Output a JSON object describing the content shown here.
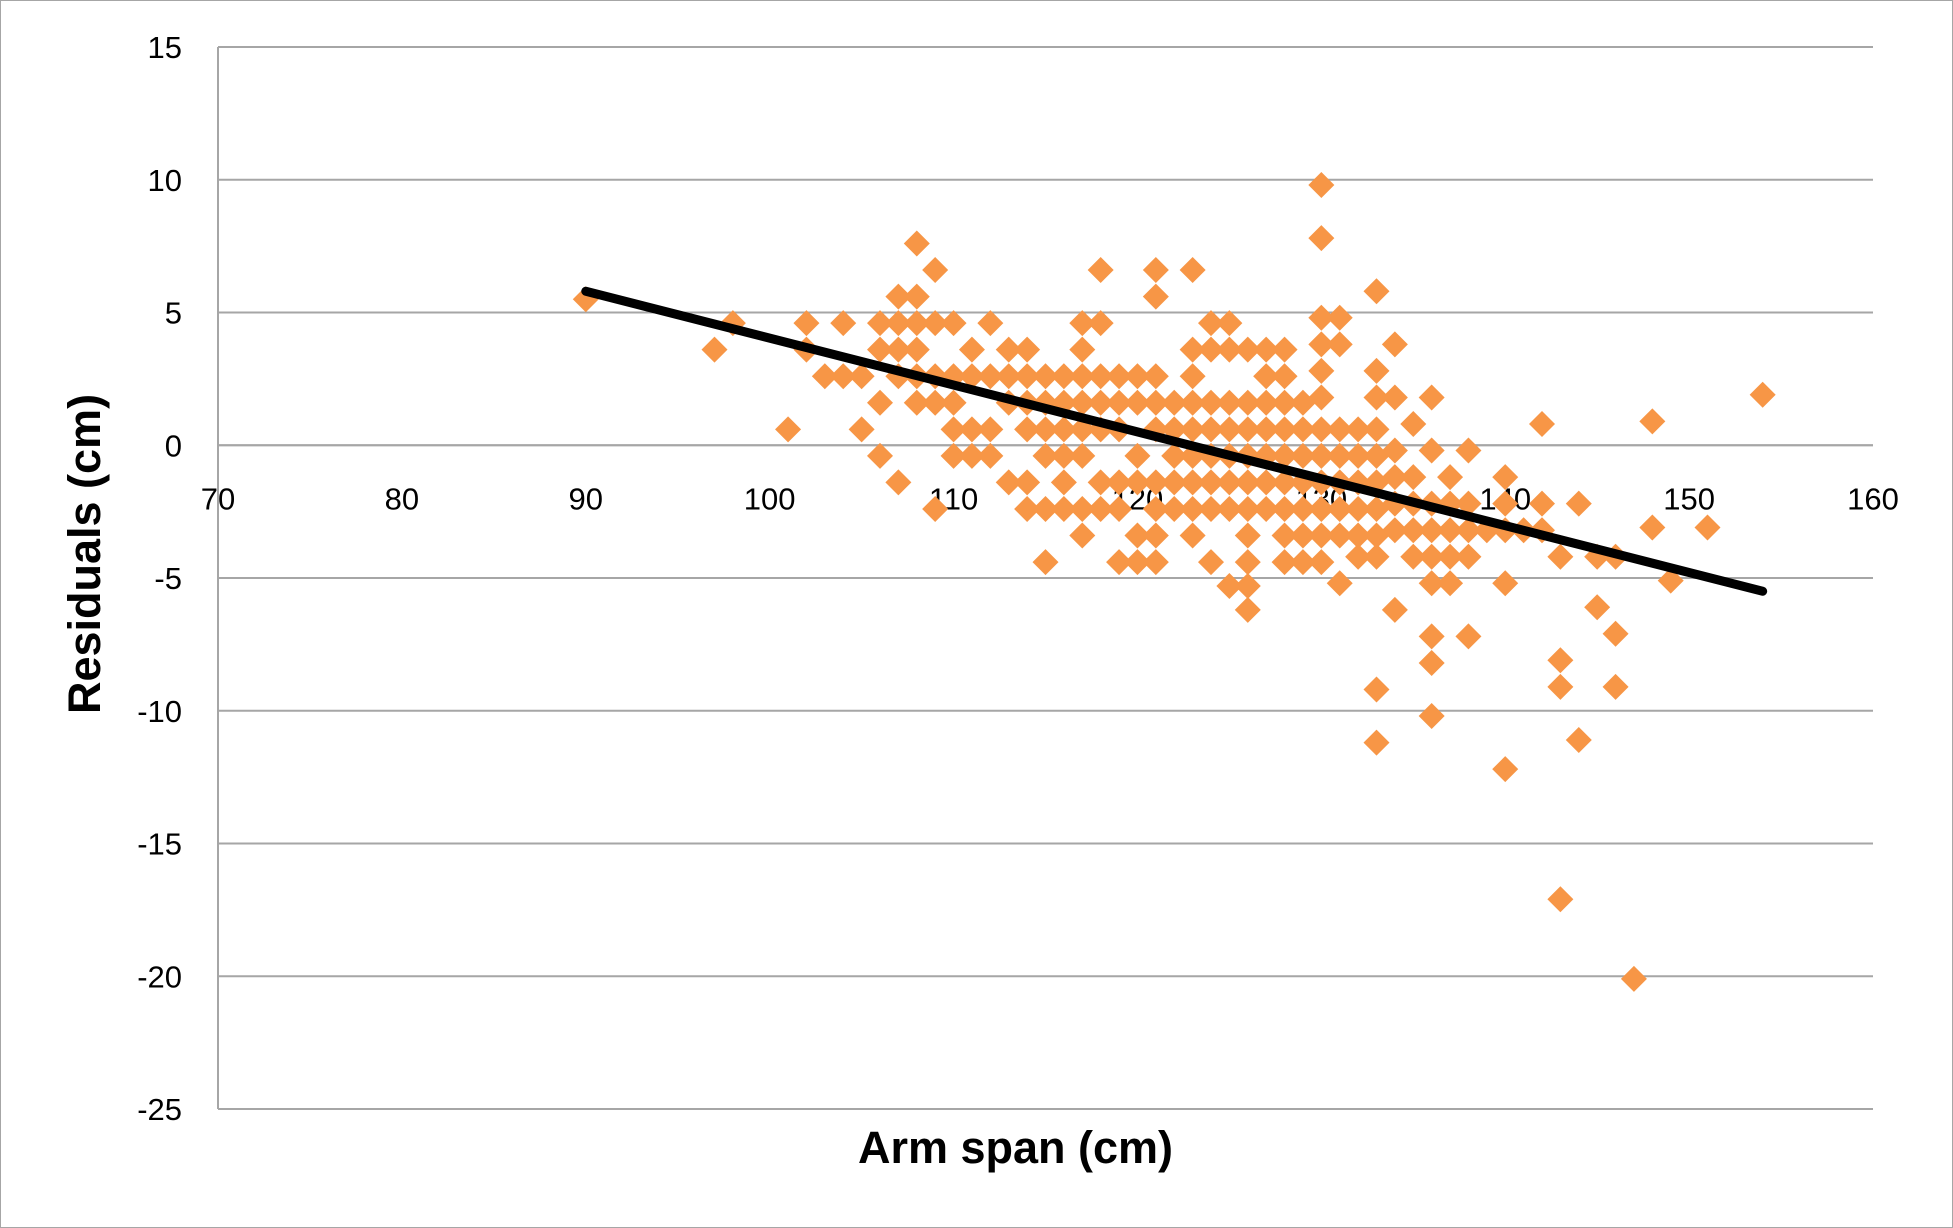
{
  "chart_data": {
    "type": "scatter",
    "xlabel": "Arm span (cm)",
    "ylabel": "Residuals (cm)",
    "xlim": [
      70,
      160
    ],
    "ylim": [
      -25,
      15
    ],
    "x_ticks": [
      70,
      80,
      90,
      100,
      110,
      120,
      130,
      140,
      150,
      160
    ],
    "y_ticks": [
      15,
      10,
      5,
      0,
      -5,
      -10,
      -15,
      -20,
      -25
    ],
    "grid": "horizontal",
    "legend": "none",
    "colors": {
      "points": "#f79646",
      "trendline": "#000000",
      "grid": "#a6a6a6"
    },
    "trendline": {
      "x": [
        90,
        154
      ],
      "y": [
        5.8,
        -5.5
      ]
    },
    "series": [
      {
        "marker": "diamond",
        "points": [
          [
            90,
            5.5
          ],
          [
            97,
            3.6
          ],
          [
            98,
            4.6
          ],
          [
            101,
            0.6
          ],
          [
            102,
            4.6
          ],
          [
            102,
            3.6
          ],
          [
            103,
            2.6
          ],
          [
            104,
            4.6
          ],
          [
            104,
            2.6
          ],
          [
            105,
            0.6
          ],
          [
            105,
            2.6
          ],
          [
            106,
            4.6
          ],
          [
            106,
            3.6
          ],
          [
            106,
            1.6
          ],
          [
            106,
            -0.4
          ],
          [
            107,
            5.6
          ],
          [
            107,
            4.6
          ],
          [
            107,
            3.6
          ],
          [
            107,
            2.6
          ],
          [
            107,
            -1.4
          ],
          [
            108,
            7.6
          ],
          [
            108,
            5.6
          ],
          [
            108,
            4.6
          ],
          [
            108,
            3.6
          ],
          [
            108,
            2.6
          ],
          [
            108,
            1.6
          ],
          [
            109,
            6.6
          ],
          [
            109,
            4.6
          ],
          [
            109,
            2.6
          ],
          [
            109,
            1.6
          ],
          [
            109,
            -2.4
          ],
          [
            110,
            4.6
          ],
          [
            110,
            2.6
          ],
          [
            110,
            1.6
          ],
          [
            110,
            0.6
          ],
          [
            110,
            -0.4
          ],
          [
            111,
            3.6
          ],
          [
            111,
            2.6
          ],
          [
            111,
            0.6
          ],
          [
            111,
            -0.4
          ],
          [
            112,
            4.6
          ],
          [
            112,
            2.6
          ],
          [
            112,
            0.6
          ],
          [
            112,
            -0.4
          ],
          [
            113,
            3.6
          ],
          [
            113,
            2.6
          ],
          [
            113,
            1.6
          ],
          [
            113,
            -1.4
          ],
          [
            114,
            3.6
          ],
          [
            114,
            2.6
          ],
          [
            114,
            1.6
          ],
          [
            114,
            0.6
          ],
          [
            114,
            -1.4
          ],
          [
            114,
            -2.4
          ],
          [
            115,
            2.6
          ],
          [
            115,
            1.6
          ],
          [
            115,
            0.6
          ],
          [
            115,
            -0.4
          ],
          [
            115,
            -2.4
          ],
          [
            115,
            -4.4
          ],
          [
            116,
            2.6
          ],
          [
            116,
            1.6
          ],
          [
            116,
            0.6
          ],
          [
            116,
            -0.4
          ],
          [
            116,
            -1.4
          ],
          [
            116,
            -2.4
          ],
          [
            117,
            4.6
          ],
          [
            117,
            3.6
          ],
          [
            117,
            2.6
          ],
          [
            117,
            1.6
          ],
          [
            117,
            0.6
          ],
          [
            117,
            -0.4
          ],
          [
            117,
            -2.4
          ],
          [
            117,
            -3.4
          ],
          [
            118,
            6.6
          ],
          [
            118,
            4.6
          ],
          [
            118,
            2.6
          ],
          [
            118,
            1.6
          ],
          [
            118,
            0.6
          ],
          [
            118,
            -1.4
          ],
          [
            118,
            -2.4
          ],
          [
            119,
            2.6
          ],
          [
            119,
            1.6
          ],
          [
            119,
            0.6
          ],
          [
            119,
            -1.4
          ],
          [
            119,
            -2.4
          ],
          [
            119,
            -4.4
          ],
          [
            120,
            2.6
          ],
          [
            120,
            1.6
          ],
          [
            120,
            -0.4
          ],
          [
            120,
            -1.4
          ],
          [
            120,
            -3.4
          ],
          [
            120,
            -4.4
          ],
          [
            121,
            6.6
          ],
          [
            121,
            5.6
          ],
          [
            121,
            2.6
          ],
          [
            121,
            1.6
          ],
          [
            121,
            0.6
          ],
          [
            121,
            -1.4
          ],
          [
            121,
            -2.4
          ],
          [
            121,
            -3.4
          ],
          [
            121,
            -4.4
          ],
          [
            122,
            1.6
          ],
          [
            122,
            0.6
          ],
          [
            122,
            -0.4
          ],
          [
            122,
            -1.4
          ],
          [
            122,
            -2.4
          ],
          [
            123,
            6.6
          ],
          [
            123,
            3.6
          ],
          [
            123,
            2.6
          ],
          [
            123,
            1.6
          ],
          [
            123,
            0.6
          ],
          [
            123,
            -0.4
          ],
          [
            123,
            -1.4
          ],
          [
            123,
            -2.4
          ],
          [
            123,
            -3.4
          ],
          [
            124,
            4.6
          ],
          [
            124,
            3.6
          ],
          [
            124,
            1.6
          ],
          [
            124,
            0.6
          ],
          [
            124,
            -0.4
          ],
          [
            124,
            -1.4
          ],
          [
            124,
            -2.4
          ],
          [
            124,
            -4.4
          ],
          [
            125,
            4.6
          ],
          [
            125,
            3.6
          ],
          [
            125,
            1.6
          ],
          [
            125,
            0.6
          ],
          [
            125,
            -0.4
          ],
          [
            125,
            -1.4
          ],
          [
            125,
            -2.4
          ],
          [
            125,
            -5.3
          ],
          [
            126,
            3.6
          ],
          [
            126,
            1.6
          ],
          [
            126,
            0.6
          ],
          [
            126,
            -0.4
          ],
          [
            126,
            -1.4
          ],
          [
            126,
            -2.4
          ],
          [
            126,
            -3.4
          ],
          [
            126,
            -4.4
          ],
          [
            126,
            -5.3
          ],
          [
            126,
            -6.2
          ],
          [
            127,
            3.6
          ],
          [
            127,
            2.6
          ],
          [
            127,
            1.6
          ],
          [
            127,
            0.6
          ],
          [
            127,
            -0.4
          ],
          [
            127,
            -1.4
          ],
          [
            127,
            -2.4
          ],
          [
            128,
            3.6
          ],
          [
            128,
            2.6
          ],
          [
            128,
            1.6
          ],
          [
            128,
            0.6
          ],
          [
            128,
            -0.4
          ],
          [
            128,
            -1.4
          ],
          [
            128,
            -2.4
          ],
          [
            128,
            -3.4
          ],
          [
            128,
            -4.4
          ],
          [
            129,
            1.6
          ],
          [
            129,
            0.6
          ],
          [
            129,
            -0.4
          ],
          [
            129,
            -1.4
          ],
          [
            129,
            -2.4
          ],
          [
            129,
            -3.4
          ],
          [
            129,
            -4.4
          ],
          [
            130,
            9.8
          ],
          [
            130,
            7.8
          ],
          [
            130,
            4.8
          ],
          [
            130,
            3.8
          ],
          [
            130,
            2.8
          ],
          [
            130,
            1.8
          ],
          [
            130,
            0.6
          ],
          [
            130,
            -0.4
          ],
          [
            130,
            -1.4
          ],
          [
            130,
            -2.4
          ],
          [
            130,
            -3.4
          ],
          [
            130,
            -4.4
          ],
          [
            131,
            4.8
          ],
          [
            131,
            3.8
          ],
          [
            131,
            0.6
          ],
          [
            131,
            -0.4
          ],
          [
            131,
            -1.4
          ],
          [
            131,
            -2.4
          ],
          [
            131,
            -3.4
          ],
          [
            131,
            -5.2
          ],
          [
            132,
            0.6
          ],
          [
            132,
            -0.4
          ],
          [
            132,
            -1.4
          ],
          [
            132,
            -2.4
          ],
          [
            132,
            -3.4
          ],
          [
            132,
            -4.2
          ],
          [
            133,
            5.8
          ],
          [
            133,
            2.8
          ],
          [
            133,
            1.8
          ],
          [
            133,
            0.6
          ],
          [
            133,
            -0.4
          ],
          [
            133,
            -1.4
          ],
          [
            133,
            -2.4
          ],
          [
            133,
            -3.4
          ],
          [
            133,
            -4.2
          ],
          [
            133,
            -9.2
          ],
          [
            133,
            -11.2
          ],
          [
            134,
            3.8
          ],
          [
            134,
            1.8
          ],
          [
            134,
            -0.2
          ],
          [
            134,
            -1.2
          ],
          [
            134,
            -2.2
          ],
          [
            134,
            -3.2
          ],
          [
            134,
            -6.2
          ],
          [
            135,
            0.8
          ],
          [
            135,
            -1.2
          ],
          [
            135,
            -2.2
          ],
          [
            135,
            -3.2
          ],
          [
            135,
            -4.2
          ],
          [
            136,
            1.8
          ],
          [
            136,
            -0.2
          ],
          [
            136,
            -2.2
          ],
          [
            136,
            -3.2
          ],
          [
            136,
            -4.2
          ],
          [
            136,
            -5.2
          ],
          [
            136,
            -7.2
          ],
          [
            136,
            -8.2
          ],
          [
            136,
            -10.2
          ],
          [
            137,
            -1.2
          ],
          [
            137,
            -2.2
          ],
          [
            137,
            -3.2
          ],
          [
            137,
            -4.2
          ],
          [
            137,
            -5.2
          ],
          [
            138,
            -0.2
          ],
          [
            138,
            -2.2
          ],
          [
            138,
            -3.2
          ],
          [
            138,
            -4.2
          ],
          [
            138,
            -7.2
          ],
          [
            139,
            -3.2
          ],
          [
            140,
            -1.2
          ],
          [
            140,
            -2.2
          ],
          [
            140,
            -3.2
          ],
          [
            140,
            -5.2
          ],
          [
            140,
            -12.2
          ],
          [
            141,
            -3.2
          ],
          [
            142,
            0.8
          ],
          [
            142,
            -2.2
          ],
          [
            142,
            -3.2
          ],
          [
            143,
            -4.2
          ],
          [
            143,
            -8.1
          ],
          [
            143,
            -9.1
          ],
          [
            143,
            -17.1
          ],
          [
            144,
            -2.2
          ],
          [
            144,
            -11.1
          ],
          [
            145,
            -4.2
          ],
          [
            145,
            -6.1
          ],
          [
            146,
            -4.2
          ],
          [
            146,
            -7.1
          ],
          [
            146,
            -9.1
          ],
          [
            147,
            -20.1
          ],
          [
            148,
            0.9
          ],
          [
            148,
            -3.1
          ],
          [
            149,
            -5.1
          ],
          [
            151,
            -3.1
          ],
          [
            154,
            1.9
          ]
        ]
      }
    ]
  }
}
